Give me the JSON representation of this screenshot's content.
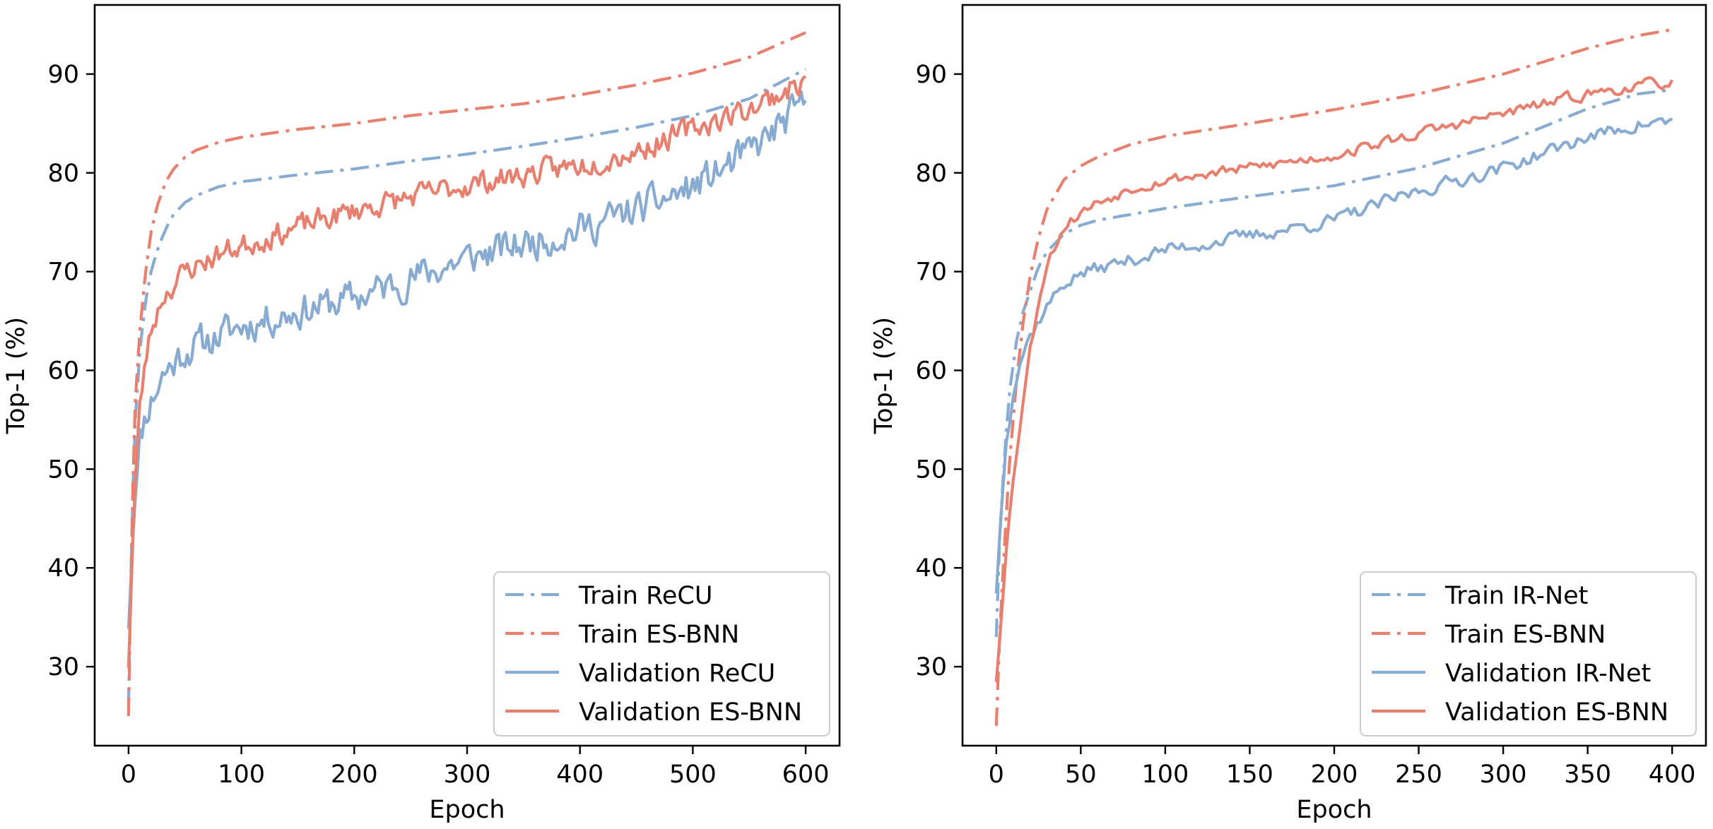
{
  "colors": {
    "recu": "#88acd1",
    "esbnn": "#e8806f",
    "irnet": "#88acd1"
  },
  "chart_data": [
    {
      "type": "line",
      "xlabel": "Epoch",
      "ylabel": "Top-1 (%)",
      "xlim": [
        -30,
        630
      ],
      "ylim": [
        22,
        97
      ],
      "xticks": [
        0,
        100,
        200,
        300,
        400,
        500,
        600
      ],
      "yticks": [
        30,
        40,
        50,
        60,
        70,
        80,
        90
      ],
      "legend_position": "lower-right",
      "series": [
        {
          "name": "Train ReCU",
          "style": "dashdot",
          "color_key": "recu",
          "x": [
            0,
            3,
            6,
            10,
            15,
            20,
            25,
            30,
            35,
            40,
            50,
            60,
            80,
            100,
            150,
            200,
            250,
            300,
            350,
            400,
            450,
            500,
            550,
            600
          ],
          "y": [
            26,
            45,
            55,
            62,
            67,
            70,
            72,
            73.5,
            74.8,
            75.8,
            77,
            77.7,
            78.6,
            79.1,
            79.8,
            80.4,
            81.2,
            81.9,
            82.7,
            83.6,
            84.6,
            85.8,
            87.5,
            90.5
          ]
        },
        {
          "name": "Train ES-BNN",
          "style": "dashdot",
          "color_key": "esbnn",
          "x": [
            0,
            3,
            6,
            10,
            15,
            20,
            25,
            30,
            35,
            40,
            50,
            60,
            80,
            100,
            150,
            200,
            250,
            300,
            350,
            400,
            450,
            500,
            550,
            600
          ],
          "y": [
            25,
            45,
            57,
            64,
            70,
            74,
            76.5,
            78.2,
            79.5,
            80.4,
            81.6,
            82.3,
            83.1,
            83.6,
            84.4,
            85,
            85.8,
            86.4,
            87,
            87.9,
            88.9,
            90.1,
            91.7,
            94.2
          ]
        },
        {
          "name": "Validation ReCU",
          "style": "solid",
          "color_key": "recu",
          "noise": 2.8,
          "seed": 11,
          "x": [
            0,
            5,
            10,
            15,
            20,
            30,
            50,
            80,
            100,
            150,
            200,
            250,
            300,
            350,
            400,
            450,
            500,
            550,
            600
          ],
          "y": [
            34,
            46,
            53,
            55.5,
            57,
            59.5,
            62,
            63.5,
            64.5,
            66,
            67.3,
            69.3,
            71.3,
            72.8,
            74.3,
            76.2,
            78.5,
            82,
            87
          ]
        },
        {
          "name": "Validation ES-BNN",
          "style": "solid",
          "color_key": "esbnn",
          "noise": 1.9,
          "seed": 23,
          "x": [
            0,
            5,
            10,
            15,
            20,
            30,
            50,
            80,
            100,
            150,
            200,
            250,
            300,
            350,
            400,
            450,
            500,
            550,
            600
          ],
          "y": [
            30,
            47,
            56,
            61,
            64,
            67.5,
            70,
            71.8,
            72.6,
            74.5,
            76.2,
            77.5,
            78.8,
            79.8,
            80.8,
            82.2,
            84.5,
            86.5,
            89.3
          ]
        }
      ]
    },
    {
      "type": "line",
      "xlabel": "Epoch",
      "ylabel": "Top-1 (%)",
      "xlim": [
        -20,
        420
      ],
      "ylim": [
        22,
        97
      ],
      "xticks": [
        0,
        50,
        100,
        150,
        200,
        250,
        300,
        350,
        400
      ],
      "yticks": [
        30,
        40,
        50,
        60,
        70,
        80,
        90
      ],
      "legend_position": "lower-right",
      "series": [
        {
          "name": "Train IR-Net",
          "style": "dashdot",
          "color_key": "irnet",
          "x": [
            0,
            2,
            5,
            8,
            12,
            16,
            20,
            25,
            30,
            40,
            50,
            60,
            80,
            100,
            150,
            200,
            250,
            300,
            350,
            380,
            400
          ],
          "y": [
            33,
            43,
            52,
            58,
            63,
            66,
            68,
            70.5,
            72,
            73.8,
            74.7,
            75.2,
            75.8,
            76.4,
            77.6,
            78.7,
            80.5,
            83,
            86.5,
            88,
            88.4
          ]
        },
        {
          "name": "Train ES-BNN",
          "style": "dashdot",
          "color_key": "esbnn",
          "x": [
            0,
            2,
            5,
            8,
            12,
            16,
            20,
            25,
            30,
            40,
            50,
            60,
            80,
            100,
            150,
            200,
            250,
            300,
            350,
            380,
            400
          ],
          "y": [
            24,
            33,
            43,
            51,
            59,
            65,
            69.5,
            73.5,
            76.3,
            79.3,
            80.7,
            81.6,
            82.9,
            83.7,
            85,
            86.4,
            88,
            90,
            92.6,
            93.9,
            94.5
          ]
        },
        {
          "name": "Validation IR-Net",
          "style": "solid",
          "color_key": "irnet",
          "noise": 1.1,
          "seed": 37,
          "x": [
            0,
            3,
            6,
            10,
            15,
            20,
            25,
            30,
            40,
            50,
            60,
            80,
            100,
            150,
            200,
            250,
            300,
            350,
            380,
            400
          ],
          "y": [
            37.5,
            46,
            53,
            58,
            61.5,
            63.5,
            65,
            66.5,
            68.8,
            69.8,
            70.3,
            71.2,
            72.2,
            73.6,
            75.2,
            78.2,
            80.5,
            83.6,
            84.9,
            85.2
          ]
        },
        {
          "name": "Validation ES-BNN",
          "style": "solid",
          "color_key": "esbnn",
          "noise": 0.9,
          "seed": 53,
          "x": [
            0,
            3,
            6,
            10,
            15,
            20,
            25,
            30,
            40,
            50,
            60,
            80,
            100,
            150,
            200,
            250,
            300,
            350,
            380,
            400
          ],
          "y": [
            28.5,
            35,
            42,
            49,
            56,
            62,
            67,
            71,
            74.5,
            76,
            77,
            78.5,
            79.3,
            80.5,
            81.8,
            84,
            86,
            88,
            88.8,
            89.2
          ]
        }
      ]
    }
  ]
}
